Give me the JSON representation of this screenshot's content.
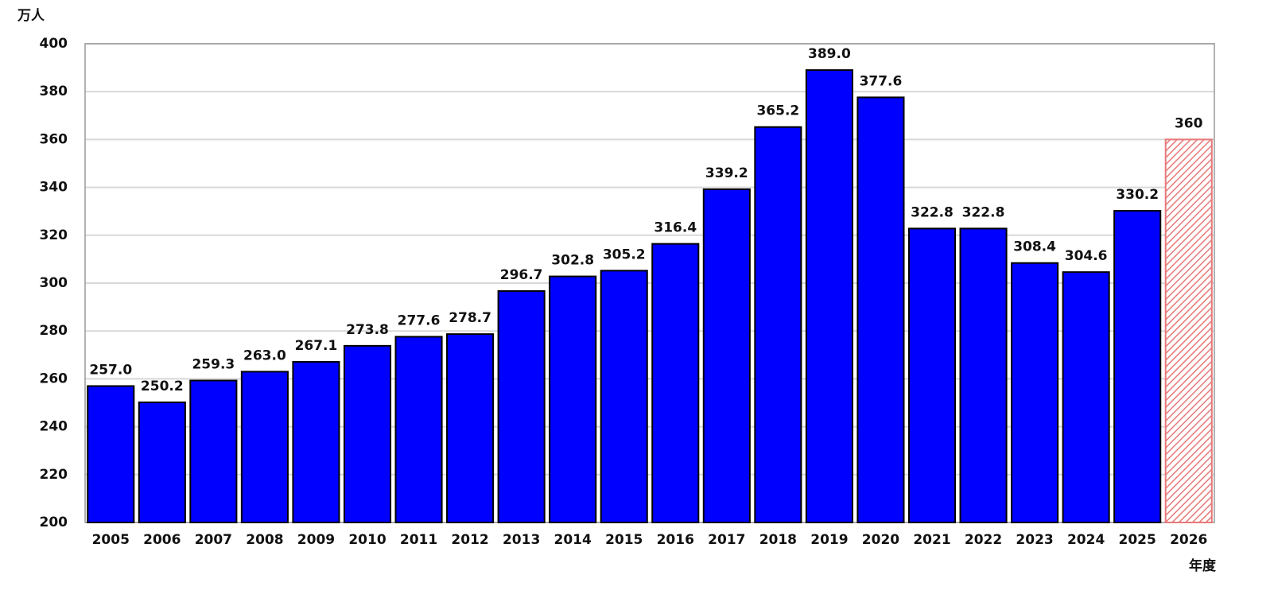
{
  "chart_data": {
    "type": "bar",
    "y_label": "万人",
    "x_label": "年度",
    "categories": [
      "2005",
      "2006",
      "2007",
      "2008",
      "2009",
      "2010",
      "2011",
      "2012",
      "2013",
      "2014",
      "2015",
      "2016",
      "2017",
      "2018",
      "2019",
      "2020",
      "2021",
      "2022",
      "2023",
      "2024",
      "2025",
      "2026"
    ],
    "values": [
      257.0,
      250.2,
      259.3,
      263.0,
      267.1,
      273.8,
      277.6,
      278.7,
      296.7,
      302.8,
      305.2,
      316.4,
      339.2,
      365.2,
      389.0,
      377.6,
      322.8,
      322.8,
      308.4,
      304.6,
      330.2,
      360
    ],
    "value_labels": [
      "257.0",
      "250.2",
      "259.3",
      "263.0",
      "267.1",
      "273.8",
      "277.6",
      "278.7",
      "296.7",
      "302.8",
      "305.2",
      "316.4",
      "339.2",
      "365.2",
      "389.0",
      "377.6",
      "322.8",
      "322.8",
      "308.4",
      "304.6",
      "330.2",
      "360"
    ],
    "colors": [
      "#0000ff",
      "#0000ff",
      "#0000ff",
      "#0000ff",
      "#0000ff",
      "#0000ff",
      "#0000ff",
      "#0000ff",
      "#0000ff",
      "#0000ff",
      "#0000ff",
      "#0000ff",
      "#0000ff",
      "#0000ff",
      "#0000ff",
      "#0000ff",
      "#0000ff",
      "#0000ff",
      "#0000ff",
      "#0000ff",
      "#0000ff",
      "#e87878"
    ],
    "bar_styles": [
      "solid",
      "solid",
      "solid",
      "solid",
      "solid",
      "solid",
      "solid",
      "solid",
      "solid",
      "solid",
      "solid",
      "solid",
      "solid",
      "solid",
      "solid",
      "solid",
      "solid",
      "solid",
      "solid",
      "solid",
      "solid",
      "hatched"
    ],
    "ylim": [
      200,
      400
    ],
    "yticks": [
      200,
      220,
      240,
      260,
      280,
      300,
      320,
      340,
      360,
      380,
      400
    ],
    "grid": true
  }
}
